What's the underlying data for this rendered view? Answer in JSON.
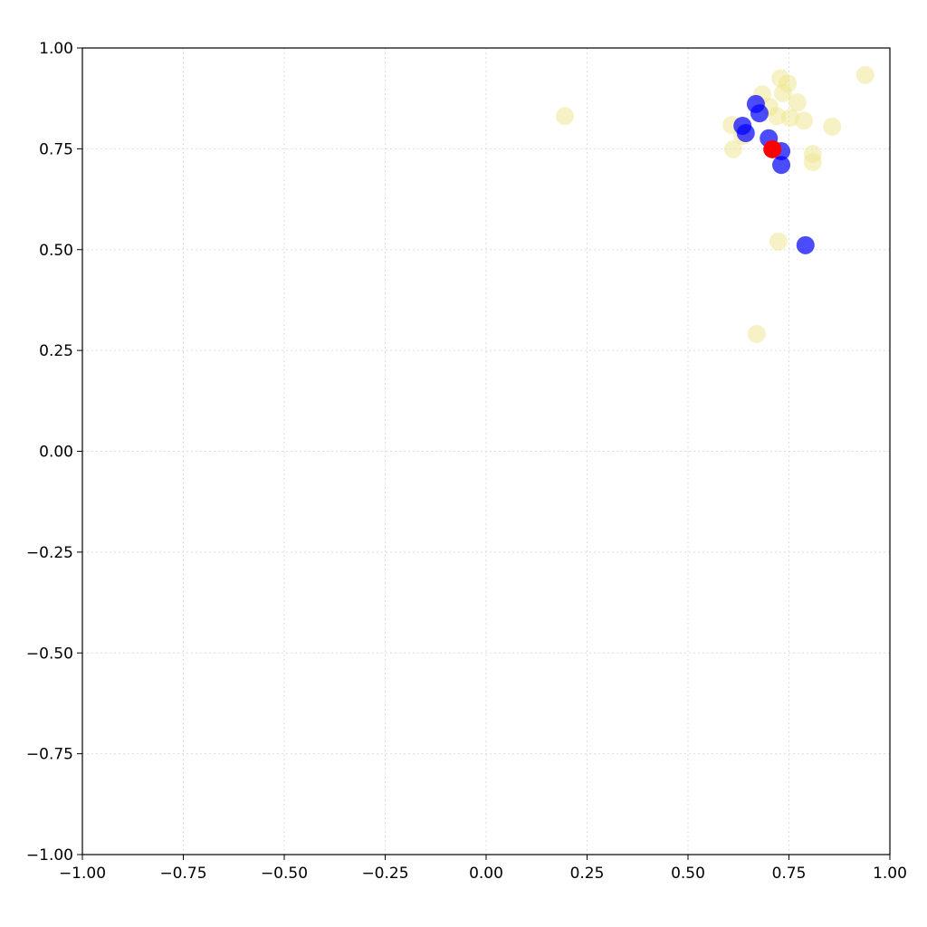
{
  "chart_data": {
    "type": "scatter",
    "xlim": [
      -1,
      1
    ],
    "ylim": [
      -1,
      1
    ],
    "xticks": [
      {
        "value": -1,
        "label": "−1.00"
      },
      {
        "value": -0.75,
        "label": "−0.75"
      },
      {
        "value": -0.5,
        "label": "−0.50"
      },
      {
        "value": -0.25,
        "label": "−0.25"
      },
      {
        "value": 0,
        "label": "0.00"
      },
      0.25,
      {
        "value": 0.5,
        "label": "0.50"
      },
      0.75,
      {
        "value": 1,
        "label": "1.00"
      }
    ],
    "yticks": [
      {
        "value": -1,
        "label": "−1.00"
      },
      {
        "value": -0.75,
        "label": "−0.75"
      },
      {
        "value": -0.5,
        "label": "−0.50"
      },
      {
        "value": -0.25,
        "label": "−0.25"
      },
      {
        "value": 0,
        "label": "0.00"
      },
      0.25,
      {
        "value": 0.5,
        "label": "0.50"
      },
      0.75,
      {
        "value": 1,
        "label": "1.00"
      }
    ],
    "grid": true,
    "series": [
      {
        "color": "#f0e68c",
        "alpha": 0.5,
        "x": [
          0.195,
          0.939,
          0.729,
          0.747,
          0.684,
          0.735,
          0.771,
          0.702,
          0.72,
          0.753,
          0.787,
          0.857,
          0.608,
          0.635,
          0.612,
          0.809,
          0.809,
          0.724,
          0.67
        ],
        "values": [
          0.831,
          0.933,
          0.925,
          0.912,
          0.885,
          0.888,
          0.865,
          0.854,
          0.831,
          0.827,
          0.82,
          0.805,
          0.809,
          0.782,
          0.749,
          0.737,
          0.717,
          0.52,
          0.291
        ]
      },
      {
        "color": "#0000ff",
        "alpha": 0.7,
        "x": [
          0.668,
          0.677,
          0.635,
          0.643,
          0.7,
          0.731,
          0.731,
          0.791
        ],
        "values": [
          0.861,
          0.838,
          0.807,
          0.789,
          0.776,
          0.744,
          0.71,
          0.511
        ]
      },
      {
        "color": "#ff0000",
        "alpha": 1,
        "x": [
          0.709
        ],
        "values": [
          0.749
        ]
      }
    ]
  }
}
